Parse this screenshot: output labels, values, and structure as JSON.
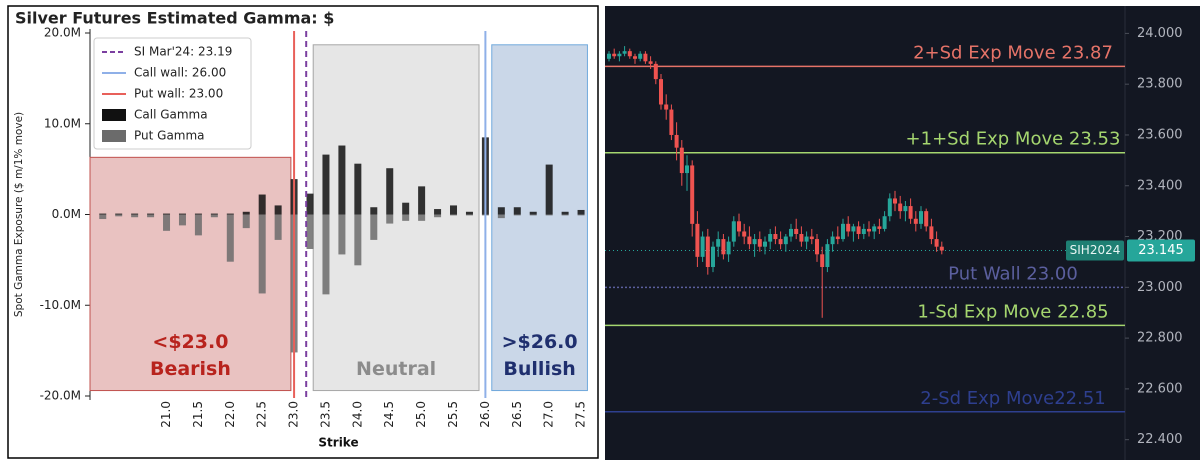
{
  "chart_data": [
    {
      "type": "bar",
      "title": "Silver Futures Estimated Gamma: $",
      "y_label": "Spot Gamma Exposure ($ m/1% move)",
      "x_label": "Strike",
      "x": [
        20,
        20.25,
        20.5,
        20.75,
        21,
        21.25,
        21.5,
        21.75,
        22,
        22.25,
        22.5,
        22.75,
        23,
        23.25,
        23.5,
        23.75,
        24,
        24.25,
        24.5,
        24.75,
        25,
        25.25,
        25.5,
        25.75,
        26,
        26.25,
        26.5,
        26.75,
        27,
        27.25,
        27.5
      ],
      "series": [
        {
          "name": "Call Gamma",
          "color": "#111111",
          "values": [
            100000,
            100000,
            100000,
            100000,
            100000,
            100000,
            100000,
            100000,
            100000,
            300000,
            2200000,
            1000000,
            3900000,
            2300000,
            6600000,
            7600000,
            5600000,
            800000,
            5100000,
            1300000,
            3100000,
            600000,
            1000000,
            300000,
            8500000,
            800000,
            800000,
            300000,
            5500000,
            300000,
            500000
          ]
        },
        {
          "name": "Put Gamma",
          "color": "#6b6b6b",
          "values": [
            -500000,
            -200000,
            -300000,
            -300000,
            -1800000,
            -1200000,
            -2300000,
            -300000,
            -5200000,
            -1500000,
            -8700000,
            -2800000,
            -15200000,
            -3800000,
            -8800000,
            -4400000,
            -5600000,
            -2800000,
            -1000000,
            -700000,
            -700000,
            -300000,
            -100000,
            -100000,
            -100000,
            -400000,
            -100000,
            -100000,
            -100000,
            -100000,
            -100000
          ]
        }
      ],
      "reference_lines": [
        {
          "label": "SI Mar'24: 23.19",
          "value": 23.19,
          "color": "#7b3fa0",
          "dashed": true
        },
        {
          "label": "Call wall: 26.00",
          "value": 26.0,
          "color": "#8fb0e8",
          "dashed": false
        },
        {
          "label": "Put wall: 23.00",
          "value": 23.0,
          "color": "#e8605a",
          "dashed": false
        }
      ],
      "regions": [
        {
          "label": "<$23.0",
          "sublabel": "Bearish",
          "x": [
            19.8,
            22.95
          ],
          "y": [
            6300000,
            -19400000
          ],
          "color": "#c0504d",
          "fill": "rgba(192,80,77,0.35)",
          "text_color": "#b8231d"
        },
        {
          "label": "Neutral",
          "x": [
            23.3,
            25.9
          ],
          "y": [
            18700000,
            -19400000
          ],
          "color": "#a6a6a6",
          "fill": "rgba(200,200,200,0.45)",
          "text_color": "#8c8c8c"
        },
        {
          "label": ">$26.0",
          "sublabel": "Bullish",
          "x": [
            26.1,
            27.6
          ],
          "y": [
            18700000,
            -19400000
          ],
          "color": "#6fa8dc",
          "fill": "rgba(150,175,210,0.5)",
          "text_color": "#1f2f6e"
        }
      ],
      "xlim": [
        19.8,
        27.75
      ],
      "xticks": [
        {
          "value": 21,
          "label": "21.0"
        },
        {
          "value": 21.5,
          "label": "21.5"
        },
        {
          "value": 22,
          "label": "22.0"
        },
        {
          "value": 22.5,
          "label": "22.5"
        },
        {
          "value": 23,
          "label": "23.0"
        },
        {
          "value": 23.5,
          "label": "23.5"
        },
        {
          "value": 24,
          "label": "24.0"
        },
        {
          "value": 24.5,
          "label": "24.5"
        },
        {
          "value": 25,
          "label": "25.0"
        },
        {
          "value": 25.5,
          "label": "25.5"
        },
        {
          "value": 26,
          "label": "26.0"
        },
        {
          "value": 26.5,
          "label": "26.5"
        },
        {
          "value": 27,
          "label": "27.0"
        },
        {
          "value": 27.5,
          "label": "27.5"
        }
      ],
      "ylim": [
        -20000000,
        20000000
      ],
      "yticks": [
        {
          "value": -20000000,
          "label": "-20.0M"
        },
        {
          "value": -10000000,
          "label": "-10.0M"
        },
        {
          "value": 0,
          "label": "0.0M"
        },
        {
          "value": 10000000,
          "label": "10.0M"
        },
        {
          "value": 20000000,
          "label": "20.0M"
        }
      ],
      "legend": "upper left"
    },
    {
      "type": "candlestick",
      "open": [
        23.9,
        23.92,
        23.91,
        23.92,
        23.93,
        23.91,
        23.9,
        23.92,
        23.89,
        23.88,
        23.82,
        23.72,
        23.7,
        23.6,
        23.55,
        23.45,
        23.48,
        23.25,
        23.12,
        23.2,
        23.08,
        23.16,
        23.19,
        23.13,
        23.18,
        23.26,
        23.22,
        23.2,
        23.17,
        23.19,
        23.16,
        23.18,
        23.21,
        23.19,
        23.17,
        23.2,
        23.23,
        23.21,
        23.18,
        23.2,
        23.19,
        23.13,
        23.08,
        23.17,
        23.2,
        23.19,
        23.25,
        23.22,
        23.24,
        23.21,
        23.23,
        23.22,
        23.24,
        23.23,
        23.28,
        23.35,
        23.33,
        23.3,
        23.32,
        23.27,
        23.25,
        23.3,
        23.24,
        23.19,
        23.16
      ],
      "high": [
        23.93,
        23.94,
        23.93,
        23.95,
        23.94,
        23.92,
        23.93,
        23.93,
        23.91,
        23.89,
        23.84,
        23.76,
        23.72,
        23.65,
        23.58,
        23.52,
        23.5,
        23.3,
        23.22,
        23.23,
        23.18,
        23.22,
        23.21,
        23.2,
        23.28,
        23.29,
        23.25,
        23.24,
        23.21,
        23.22,
        23.2,
        23.23,
        23.24,
        23.22,
        23.21,
        23.25,
        23.27,
        23.24,
        23.22,
        23.23,
        23.21,
        23.16,
        23.19,
        23.22,
        23.24,
        23.27,
        23.28,
        23.25,
        23.26,
        23.25,
        23.26,
        23.25,
        23.27,
        23.3,
        23.37,
        23.38,
        23.36,
        23.34,
        23.35,
        23.3,
        23.32,
        23.31,
        23.27,
        23.22,
        23.18
      ],
      "low": [
        23.89,
        23.9,
        23.89,
        23.91,
        23.9,
        23.88,
        23.89,
        23.88,
        23.86,
        23.8,
        23.7,
        23.66,
        23.58,
        23.5,
        23.4,
        23.38,
        23.2,
        23.08,
        23.1,
        23.05,
        23.06,
        23.12,
        23.11,
        23.1,
        23.16,
        23.2,
        23.17,
        23.15,
        23.12,
        23.14,
        23.13,
        23.15,
        23.17,
        23.15,
        23.14,
        23.18,
        23.19,
        23.16,
        23.15,
        23.17,
        23.1,
        22.88,
        23.06,
        23.14,
        23.17,
        23.18,
        23.2,
        23.18,
        23.19,
        23.19,
        23.2,
        23.19,
        23.21,
        23.22,
        23.26,
        23.3,
        23.27,
        23.26,
        23.25,
        23.22,
        23.23,
        23.22,
        23.17,
        23.14,
        23.13
      ],
      "close": [
        23.92,
        23.91,
        23.92,
        23.93,
        23.91,
        23.9,
        23.92,
        23.89,
        23.88,
        23.82,
        23.72,
        23.7,
        23.6,
        23.55,
        23.45,
        23.48,
        23.25,
        23.12,
        23.2,
        23.08,
        23.16,
        23.19,
        23.13,
        23.18,
        23.26,
        23.22,
        23.2,
        23.17,
        23.19,
        23.16,
        23.18,
        23.21,
        23.19,
        23.17,
        23.2,
        23.23,
        23.21,
        23.18,
        23.2,
        23.19,
        23.13,
        23.08,
        23.17,
        23.2,
        23.19,
        23.25,
        23.22,
        23.24,
        23.21,
        23.23,
        23.22,
        23.24,
        23.23,
        23.28,
        23.35,
        23.33,
        23.3,
        23.32,
        23.27,
        23.25,
        23.3,
        23.24,
        23.19,
        23.16,
        23.145
      ],
      "up_color": "#26a69a",
      "down_color": "#ef5350",
      "ylim": [
        22.32,
        24.1
      ],
      "yticks": [
        {
          "value": 22.4,
          "label": "22.400"
        },
        {
          "value": 22.6,
          "label": "22.600"
        },
        {
          "value": 22.8,
          "label": "22.800"
        },
        {
          "value": 23,
          "label": "23.000"
        },
        {
          "value": 23.2,
          "label": "23.200"
        },
        {
          "value": 23.4,
          "label": "23.400"
        },
        {
          "value": 23.6,
          "label": "23.600"
        },
        {
          "value": 23.8,
          "label": "23.800"
        },
        {
          "value": 24,
          "label": "24.000"
        }
      ],
      "reference_lines": [
        {
          "label": "2+Sd Exp Move 23.87",
          "value": 23.87,
          "color": "#e57368",
          "dashed": false
        },
        {
          "label": "+1+Sd Exp Move 23.53",
          "value": 23.53,
          "color": "#a5d66f",
          "dashed": false
        },
        {
          "label": "Put Wall 23.00",
          "value": 23.0,
          "color": "#5b5f9e",
          "dashed": true
        },
        {
          "label": "1-Sd Exp Move 22.85",
          "value": 22.85,
          "color": "#a5d66f",
          "dashed": false
        },
        {
          "label": "2-Sd Exp Move22.51",
          "value": 22.51,
          "color": "#2e3f8f",
          "dashed": false
        }
      ],
      "last_price": {
        "label": "SIH2024",
        "value": 23.145,
        "color": "#26a69a"
      }
    }
  ]
}
